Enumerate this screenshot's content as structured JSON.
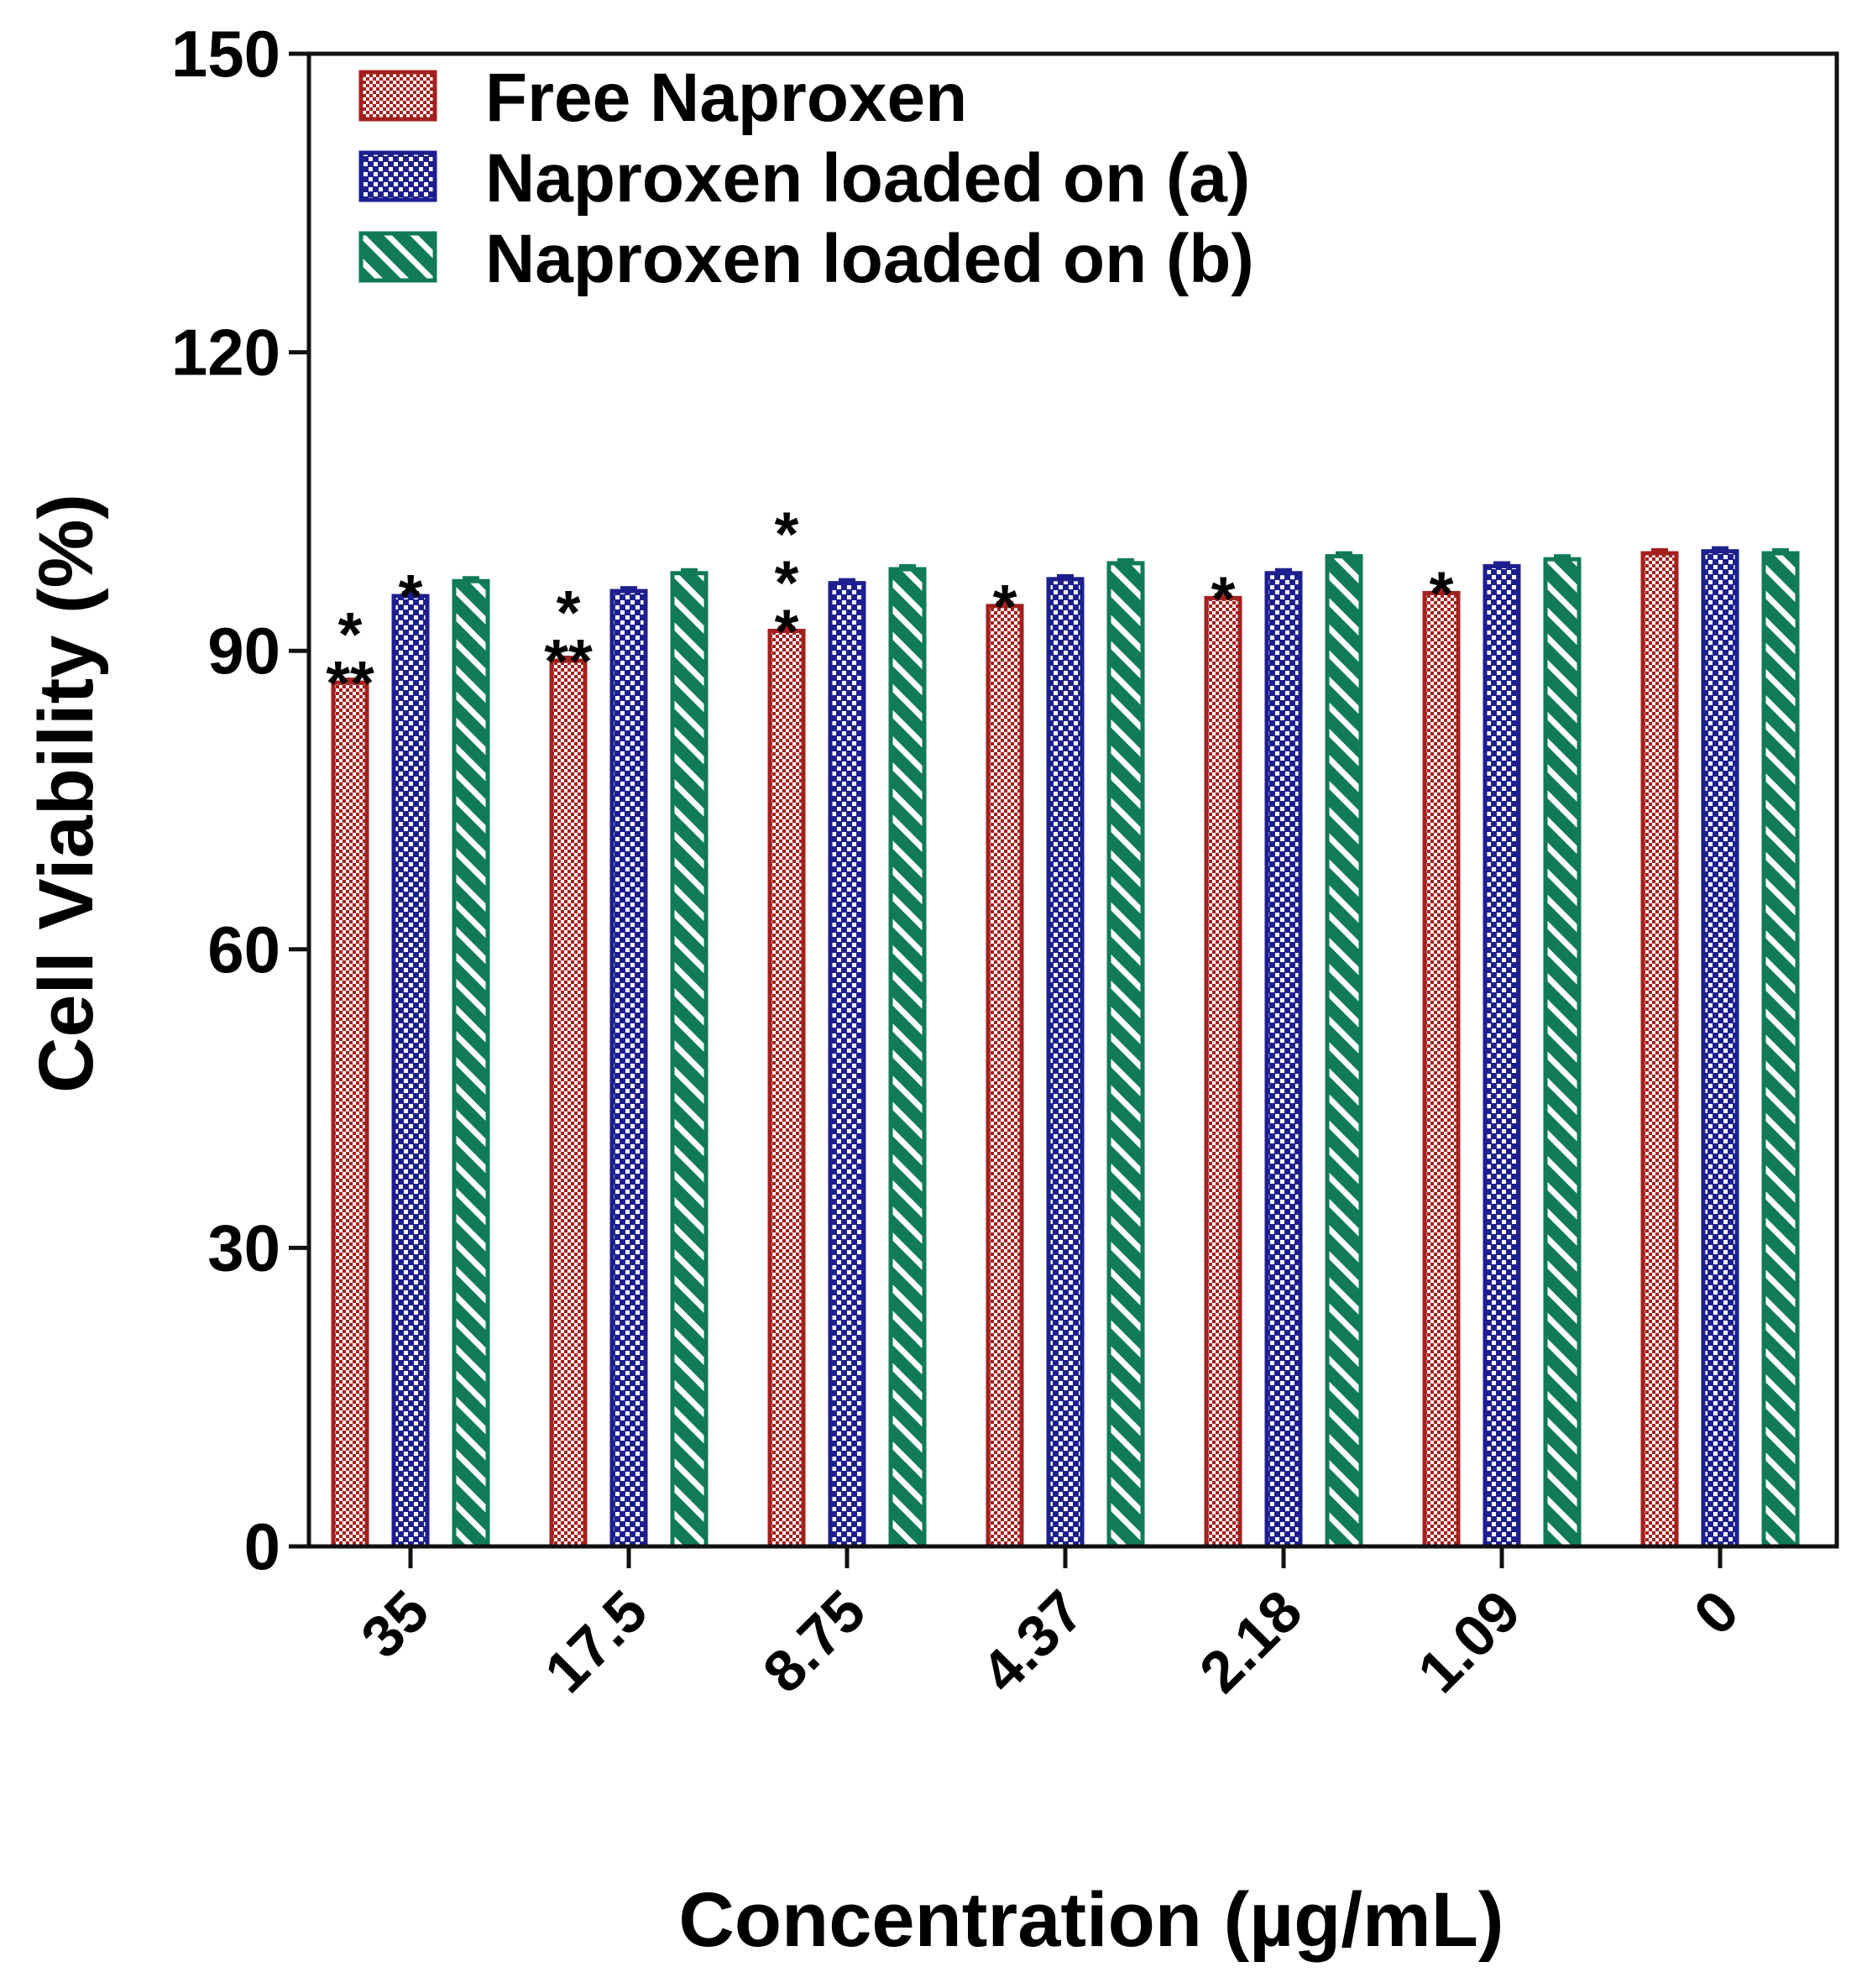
{
  "chart_data": {
    "type": "bar",
    "title": "",
    "xlabel": "Concentration (µg/mL)",
    "ylabel": "Cell Viability (%)",
    "ylim": [
      0,
      150
    ],
    "yticks": [
      "0",
      "30",
      "60",
      "90",
      "120",
      "150"
    ],
    "categories": [
      "35",
      "17.5",
      "8.75",
      "4.37",
      "2.18",
      "1.09",
      "0"
    ],
    "series": [
      {
        "name": "Free Naproxen",
        "color": "#a3201e",
        "pattern": "checker",
        "values": [
          86.8,
          89.0,
          92.0,
          94.5,
          95.3,
          95.8,
          99.8
        ]
      },
      {
        "name": "Naproxen loaded on (a)",
        "color": "#1e1f8e",
        "pattern": "dots",
        "values": [
          95.5,
          96.0,
          96.8,
          97.2,
          97.8,
          98.5,
          100.0
        ]
      },
      {
        "name": "Naproxen loaded on (b)",
        "color": "#117a58",
        "pattern": "stripes",
        "values": [
          97.0,
          97.8,
          98.2,
          98.8,
          99.5,
          99.2,
          99.8
        ]
      }
    ],
    "significance": [
      {
        "category": "35",
        "series": 0,
        "label": "*\n**"
      },
      {
        "category": "35",
        "series": 1,
        "label": "*"
      },
      {
        "category": "17.5",
        "series": 0,
        "label": "*\n**"
      },
      {
        "category": "8.75",
        "series": 0,
        "label": "*\n*\n*"
      },
      {
        "category": "4.37",
        "series": 0,
        "label": "*"
      },
      {
        "category": "2.18",
        "series": 0,
        "label": "*"
      },
      {
        "category": "1.09",
        "series": 0,
        "label": "*"
      }
    ],
    "legend": {
      "position": "top-left"
    },
    "grid": false
  }
}
